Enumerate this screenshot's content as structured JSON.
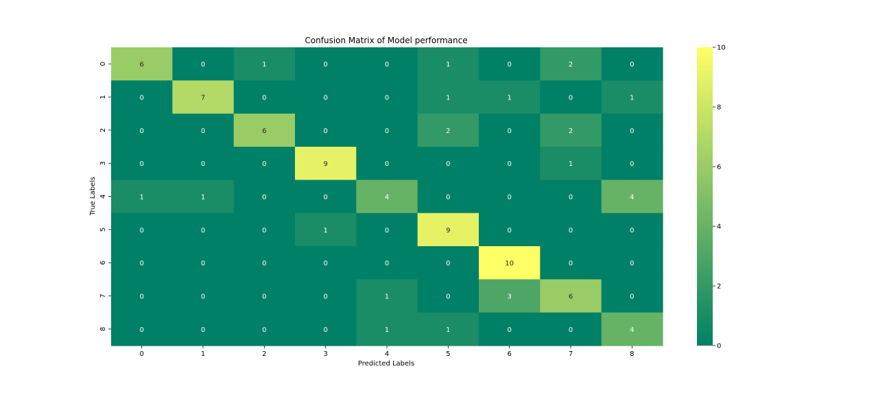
{
  "chart_data": {
    "type": "heatmap",
    "title": "Confusion Matrix of Model performance",
    "xlabel": "Predicted Labels",
    "ylabel": "True Labels",
    "x_categories": [
      "0",
      "1",
      "2",
      "3",
      "4",
      "5",
      "6",
      "7",
      "8"
    ],
    "y_categories": [
      "0",
      "1",
      "2",
      "3",
      "4",
      "5",
      "6",
      "7",
      "8"
    ],
    "values": [
      [
        6,
        0,
        1,
        0,
        0,
        1,
        0,
        2,
        0
      ],
      [
        0,
        7,
        0,
        0,
        0,
        1,
        1,
        0,
        1
      ],
      [
        0,
        0,
        6,
        0,
        0,
        2,
        0,
        2,
        0
      ],
      [
        0,
        0,
        0,
        9,
        0,
        0,
        0,
        1,
        0
      ],
      [
        1,
        1,
        0,
        0,
        4,
        0,
        0,
        0,
        4
      ],
      [
        0,
        0,
        0,
        1,
        0,
        9,
        0,
        0,
        0
      ],
      [
        0,
        0,
        0,
        0,
        0,
        0,
        10,
        0,
        0
      ],
      [
        0,
        0,
        0,
        0,
        1,
        0,
        3,
        6,
        0
      ],
      [
        0,
        0,
        0,
        0,
        1,
        1,
        0,
        0,
        4
      ]
    ],
    "colormap": "summer",
    "vmin": 0,
    "vmax": 10,
    "colorbar_ticks": [
      0,
      2,
      4,
      6,
      8,
      10
    ],
    "annotations": true,
    "colors": {
      "low": "#008066",
      "high": "#ffff66"
    }
  }
}
